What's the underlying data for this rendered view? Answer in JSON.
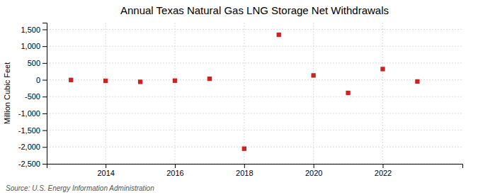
{
  "chart_data": {
    "type": "scatter",
    "title": "Annual Texas Natural Gas LNG Storage Net Withdrawals",
    "y_label": "Million Cubic Feet",
    "annotations": [
      "Source: U.S. Energy Information Administration"
    ],
    "x": [
      2013,
      2014,
      2015,
      2016,
      2017,
      2018,
      2019,
      2020,
      2021,
      2022,
      2023
    ],
    "values": [
      -5,
      -30,
      -60,
      -25,
      30,
      -2050,
      1340,
      130,
      -390,
      320,
      -50
    ],
    "color": "#cc2222",
    "marker": "square",
    "xlim": [
      2012.3,
      2024.3
    ],
    "xticks": [
      2014,
      2016,
      2018,
      2020,
      2022
    ],
    "ylim": [
      -2500,
      1700
    ],
    "yticks": [
      {
        "value": -2500,
        "label": "-2,500"
      },
      {
        "value": -2000,
        "label": "-2,000"
      },
      {
        "value": -1500,
        "label": "-1,500"
      },
      {
        "value": -1000,
        "label": "-1,000"
      },
      -500,
      0,
      500,
      {
        "value": 1000,
        "label": "1,000"
      },
      {
        "value": 1500,
        "label": "1,500"
      }
    ],
    "grid": true
  }
}
